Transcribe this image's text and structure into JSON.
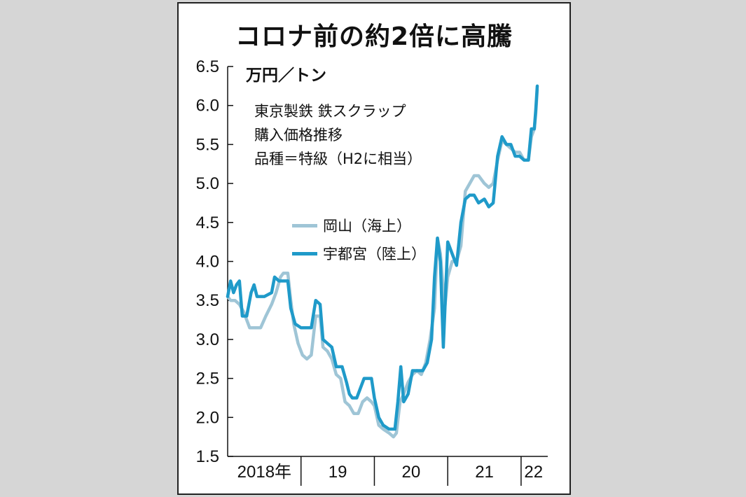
{
  "chart_data": {
    "type": "line",
    "title": "コロナ前の約2倍に高騰",
    "unit": "万円／トン",
    "caption": [
      "東京製鉄 鉄スクラップ",
      "購入価格推移",
      "品種＝特級（H2に相当）"
    ],
    "ylim": [
      1.5,
      6.5
    ],
    "yticks": [
      "1.5",
      "2.0",
      "2.5",
      "3.0",
      "3.5",
      "4.0",
      "4.5",
      "5.0",
      "5.5",
      "6.0",
      "6.5"
    ],
    "xlim": [
      2018.0,
      2022.23
    ],
    "xticks": [
      {
        "label": "2018年",
        "at": 2018.5
      },
      {
        "label": "19",
        "at": 2019.5
      },
      {
        "label": "20",
        "at": 2020.5
      },
      {
        "label": "21",
        "at": 2021.5
      },
      {
        "label": "22",
        "at": 2022.17
      }
    ],
    "year_dividers": [
      2019,
      2020,
      2021,
      2022
    ],
    "series": [
      {
        "name": "岡山（海上）",
        "color": "#9fc5d6",
        "points": [
          [
            2018.0,
            3.55
          ],
          [
            2018.04,
            3.5
          ],
          [
            2018.1,
            3.5
          ],
          [
            2018.16,
            3.45
          ],
          [
            2018.22,
            3.35
          ],
          [
            2018.3,
            3.15
          ],
          [
            2018.45,
            3.15
          ],
          [
            2018.52,
            3.3
          ],
          [
            2018.6,
            3.45
          ],
          [
            2018.66,
            3.6
          ],
          [
            2018.72,
            3.8
          ],
          [
            2018.76,
            3.85
          ],
          [
            2018.82,
            3.85
          ],
          [
            2018.86,
            3.5
          ],
          [
            2018.9,
            3.2
          ],
          [
            2018.96,
            2.95
          ],
          [
            2019.02,
            2.8
          ],
          [
            2019.08,
            2.75
          ],
          [
            2019.14,
            2.8
          ],
          [
            2019.2,
            3.3
          ],
          [
            2019.26,
            3.3
          ],
          [
            2019.3,
            2.9
          ],
          [
            2019.36,
            2.85
          ],
          [
            2019.42,
            2.75
          ],
          [
            2019.48,
            2.55
          ],
          [
            2019.54,
            2.5
          ],
          [
            2019.6,
            2.2
          ],
          [
            2019.66,
            2.15
          ],
          [
            2019.72,
            2.05
          ],
          [
            2019.78,
            2.05
          ],
          [
            2019.84,
            2.2
          ],
          [
            2019.9,
            2.25
          ],
          [
            2019.96,
            2.2
          ],
          [
            2020.0,
            2.15
          ],
          [
            2020.06,
            1.9
          ],
          [
            2020.12,
            1.85
          ],
          [
            2020.2,
            1.8
          ],
          [
            2020.26,
            1.75
          ],
          [
            2020.3,
            1.8
          ],
          [
            2020.35,
            2.2
          ],
          [
            2020.4,
            2.3
          ],
          [
            2020.46,
            2.45
          ],
          [
            2020.52,
            2.55
          ],
          [
            2020.58,
            2.6
          ],
          [
            2020.64,
            2.55
          ],
          [
            2020.7,
            2.7
          ],
          [
            2020.76,
            3.0
          ],
          [
            2020.82,
            3.4
          ],
          [
            2020.86,
            4.3
          ],
          [
            2020.9,
            4.1
          ],
          [
            2020.96,
            3.4
          ],
          [
            2021.0,
            3.8
          ],
          [
            2021.06,
            4.0
          ],
          [
            2021.12,
            4.0
          ],
          [
            2021.18,
            4.2
          ],
          [
            2021.24,
            4.9
          ],
          [
            2021.3,
            5.0
          ],
          [
            2021.36,
            5.1
          ],
          [
            2021.42,
            5.1
          ],
          [
            2021.5,
            5.0
          ],
          [
            2021.56,
            4.95
          ],
          [
            2021.62,
            5.0
          ],
          [
            2021.68,
            5.3
          ],
          [
            2021.74,
            5.55
          ],
          [
            2021.8,
            5.5
          ],
          [
            2021.86,
            5.45
          ],
          [
            2021.92,
            5.4
          ],
          [
            2021.98,
            5.4
          ],
          [
            2022.04,
            5.3
          ],
          [
            2022.1,
            5.3
          ],
          [
            2022.14,
            5.6
          ],
          [
            2022.18,
            5.7
          ],
          [
            2022.2,
            5.9
          ],
          [
            2022.22,
            6.2
          ]
        ]
      },
      {
        "name": "宇都宮（陸上）",
        "color": "#1f9ac9",
        "points": [
          [
            2018.0,
            3.55
          ],
          [
            2018.04,
            3.75
          ],
          [
            2018.08,
            3.6
          ],
          [
            2018.12,
            3.7
          ],
          [
            2018.16,
            3.75
          ],
          [
            2018.2,
            3.3
          ],
          [
            2018.26,
            3.3
          ],
          [
            2018.32,
            3.6
          ],
          [
            2018.36,
            3.7
          ],
          [
            2018.4,
            3.55
          ],
          [
            2018.5,
            3.55
          ],
          [
            2018.6,
            3.6
          ],
          [
            2018.64,
            3.8
          ],
          [
            2018.7,
            3.75
          ],
          [
            2018.76,
            3.75
          ],
          [
            2018.82,
            3.75
          ],
          [
            2018.86,
            3.4
          ],
          [
            2018.92,
            3.2
          ],
          [
            2019.0,
            3.15
          ],
          [
            2019.08,
            3.15
          ],
          [
            2019.14,
            3.15
          ],
          [
            2019.2,
            3.5
          ],
          [
            2019.26,
            3.45
          ],
          [
            2019.3,
            3.0
          ],
          [
            2019.36,
            2.95
          ],
          [
            2019.42,
            2.9
          ],
          [
            2019.48,
            2.65
          ],
          [
            2019.56,
            2.65
          ],
          [
            2019.62,
            2.45
          ],
          [
            2019.66,
            2.3
          ],
          [
            2019.7,
            2.25
          ],
          [
            2019.76,
            2.25
          ],
          [
            2019.8,
            2.35
          ],
          [
            2019.86,
            2.5
          ],
          [
            2019.96,
            2.5
          ],
          [
            2020.0,
            2.25
          ],
          [
            2020.06,
            2.0
          ],
          [
            2020.12,
            1.9
          ],
          [
            2020.2,
            1.85
          ],
          [
            2020.28,
            1.85
          ],
          [
            2020.32,
            2.2
          ],
          [
            2020.36,
            2.65
          ],
          [
            2020.4,
            2.2
          ],
          [
            2020.46,
            2.3
          ],
          [
            2020.52,
            2.6
          ],
          [
            2020.58,
            2.6
          ],
          [
            2020.66,
            2.6
          ],
          [
            2020.72,
            2.7
          ],
          [
            2020.78,
            3.0
          ],
          [
            2020.82,
            3.8
          ],
          [
            2020.86,
            4.3
          ],
          [
            2020.9,
            4.0
          ],
          [
            2020.94,
            2.9
          ],
          [
            2021.0,
            4.25
          ],
          [
            2021.06,
            4.1
          ],
          [
            2021.12,
            3.95
          ],
          [
            2021.18,
            4.5
          ],
          [
            2021.24,
            4.8
          ],
          [
            2021.3,
            4.85
          ],
          [
            2021.36,
            4.85
          ],
          [
            2021.42,
            4.75
          ],
          [
            2021.5,
            4.8
          ],
          [
            2021.56,
            4.7
          ],
          [
            2021.62,
            4.75
          ],
          [
            2021.68,
            5.35
          ],
          [
            2021.74,
            5.6
          ],
          [
            2021.8,
            5.5
          ],
          [
            2021.86,
            5.5
          ],
          [
            2021.92,
            5.35
          ],
          [
            2021.98,
            5.35
          ],
          [
            2022.04,
            5.3
          ],
          [
            2022.1,
            5.3
          ],
          [
            2022.14,
            5.7
          ],
          [
            2022.18,
            5.7
          ],
          [
            2022.2,
            5.95
          ],
          [
            2022.22,
            6.25
          ]
        ]
      }
    ]
  }
}
